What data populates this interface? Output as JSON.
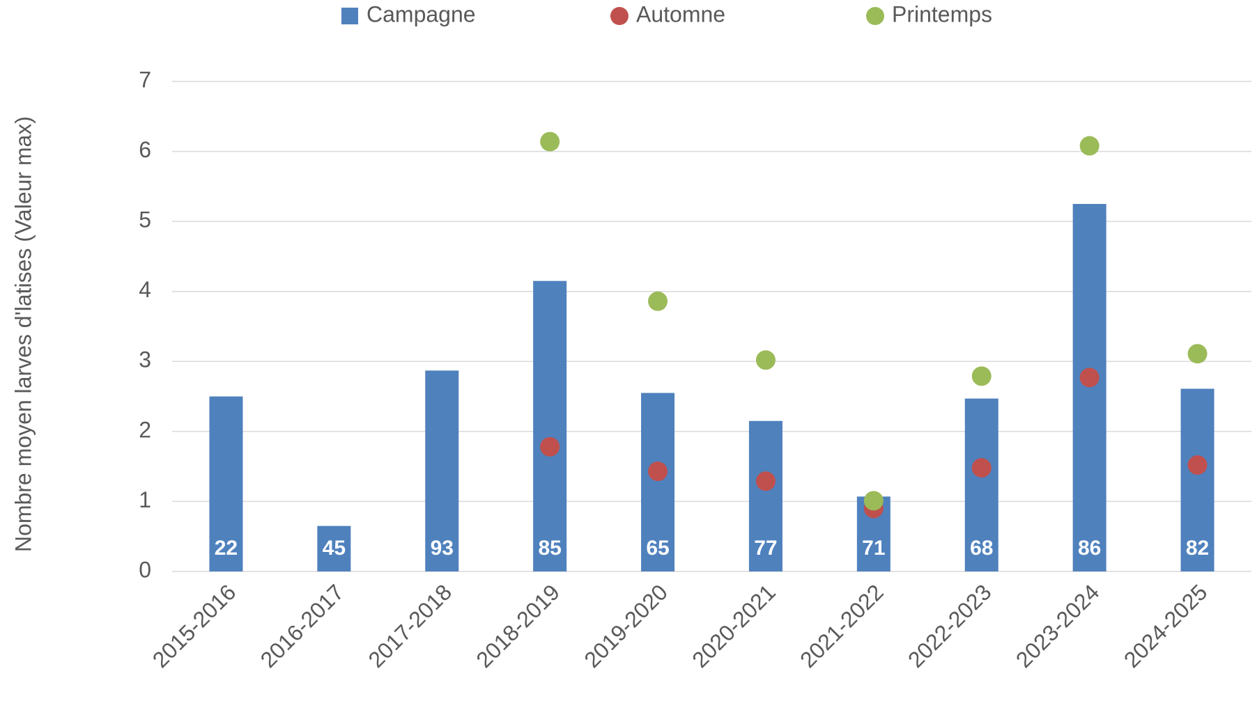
{
  "chart_data": {
    "type": "bar",
    "y_label": "Nombre moyen larves d'latises (Valeur max)",
    "categories": [
      "2015-2016",
      "2016-2017",
      "2017-2018",
      "2018-2019",
      "2019-2020",
      "2020-2021",
      "2021-2022",
      "2022-2023",
      "2023-2024",
      "2024-2025"
    ],
    "series": [
      {
        "name": "Campagne",
        "type": "bar",
        "color": "#4f81bd",
        "values": [
          2.5,
          0.65,
          2.87,
          4.15,
          2.55,
          2.15,
          1.07,
          2.47,
          5.25,
          2.61
        ],
        "data_labels": [
          22,
          45,
          93,
          85,
          65,
          77,
          71,
          68,
          86,
          82
        ]
      },
      {
        "name": "Automne",
        "type": "scatter",
        "color": "#c0504d",
        "values": [
          null,
          null,
          null,
          1.78,
          1.43,
          1.29,
          0.9,
          1.48,
          2.77,
          1.52
        ]
      },
      {
        "name": "Printemps",
        "type": "scatter",
        "color": "#9bbb59",
        "values": [
          null,
          null,
          null,
          6.14,
          3.86,
          3.02,
          1.01,
          2.79,
          6.08,
          3.11
        ]
      }
    ],
    "ylim": [
      0,
      7
    ],
    "yticks": [
      0,
      1,
      2,
      3,
      4,
      5,
      6,
      7
    ],
    "grid": true,
    "legend": "top"
  }
}
